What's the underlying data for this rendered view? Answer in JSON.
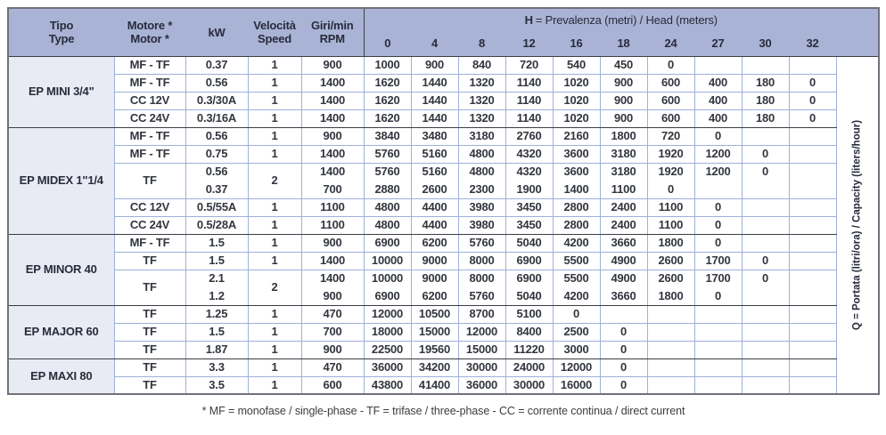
{
  "table": {
    "headers": {
      "tipo_line1": "Tipo",
      "tipo_line2": "Type",
      "motore_line1": "Motore *",
      "motore_line2": "Motor *",
      "kw": "kW",
      "velocita_line1": "Velocità",
      "velocita_line2": "Speed",
      "giri_line1": "Giri/min",
      "giri_line2": "RPM",
      "h_symbol": "H",
      "h_title": "= Prevalenza (metri) / Head (meters)",
      "h_values": [
        "0",
        "4",
        "8",
        "12",
        "16",
        "18",
        "24",
        "27",
        "30",
        "32"
      ]
    },
    "q_label": "Q = Portata (litri/ora) / Capacity (liters/hour)",
    "groups": [
      {
        "name": "EP MINI 3/4\"",
        "rows": [
          {
            "motor": "MF - TF",
            "kw": [
              "0.37"
            ],
            "speed": "1",
            "rpm": [
              "900"
            ],
            "q": [
              [
                "1000",
                "900",
                "840",
                "720",
                "540",
                "450",
                "0",
                "",
                "",
                ""
              ]
            ]
          },
          {
            "motor": "MF - TF",
            "kw": [
              "0.56"
            ],
            "speed": "1",
            "rpm": [
              "1400"
            ],
            "q": [
              [
                "1620",
                "1440",
                "1320",
                "1140",
                "1020",
                "900",
                "600",
                "400",
                "180",
                "0"
              ]
            ]
          },
          {
            "motor": "CC 12V",
            "kw": [
              "0.3/30A"
            ],
            "speed": "1",
            "rpm": [
              "1400"
            ],
            "q": [
              [
                "1620",
                "1440",
                "1320",
                "1140",
                "1020",
                "900",
                "600",
                "400",
                "180",
                "0"
              ]
            ]
          },
          {
            "motor": "CC 24V",
            "kw": [
              "0.3/16A"
            ],
            "speed": "1",
            "rpm": [
              "1400"
            ],
            "q": [
              [
                "1620",
                "1440",
                "1320",
                "1140",
                "1020",
                "900",
                "600",
                "400",
                "180",
                "0"
              ]
            ]
          }
        ]
      },
      {
        "name": "EP MIDEX 1\"1/4",
        "rows": [
          {
            "motor": "MF - TF",
            "kw": [
              "0.56"
            ],
            "speed": "1",
            "rpm": [
              "900"
            ],
            "q": [
              [
                "3840",
                "3480",
                "3180",
                "2760",
                "2160",
                "1800",
                "720",
                "0",
                "",
                ""
              ]
            ]
          },
          {
            "motor": "MF - TF",
            "kw": [
              "0.75"
            ],
            "speed": "1",
            "rpm": [
              "1400"
            ],
            "q": [
              [
                "5760",
                "5160",
                "4800",
                "4320",
                "3600",
                "3180",
                "1920",
                "1200",
                "0",
                ""
              ]
            ]
          },
          {
            "motor": "TF",
            "kw": [
              "0.56",
              "0.37"
            ],
            "speed": "2",
            "rpm": [
              "1400",
              "700"
            ],
            "q": [
              [
                "5760",
                "5160",
                "4800",
                "4320",
                "3600",
                "3180",
                "1920",
                "1200",
                "0",
                ""
              ],
              [
                "2880",
                "2600",
                "2300",
                "1900",
                "1400",
                "1100",
                "0",
                "",
                "",
                ""
              ]
            ]
          },
          {
            "motor": "CC 12V",
            "kw": [
              "0.5/55A"
            ],
            "speed": "1",
            "rpm": [
              "1100"
            ],
            "q": [
              [
                "4800",
                "4400",
                "3980",
                "3450",
                "2800",
                "2400",
                "1100",
                "0",
                "",
                ""
              ]
            ]
          },
          {
            "motor": "CC 24V",
            "kw": [
              "0.5/28A"
            ],
            "speed": "1",
            "rpm": [
              "1100"
            ],
            "q": [
              [
                "4800",
                "4400",
                "3980",
                "3450",
                "2800",
                "2400",
                "1100",
                "0",
                "",
                ""
              ]
            ]
          }
        ]
      },
      {
        "name": "EP MINOR 40",
        "rows": [
          {
            "motor": "MF - TF",
            "kw": [
              "1.5"
            ],
            "speed": "1",
            "rpm": [
              "900"
            ],
            "q": [
              [
                "6900",
                "6200",
                "5760",
                "5040",
                "4200",
                "3660",
                "1800",
                "0",
                "",
                ""
              ]
            ]
          },
          {
            "motor": "TF",
            "kw": [
              "1.5"
            ],
            "speed": "1",
            "rpm": [
              "1400"
            ],
            "q": [
              [
                "10000",
                "9000",
                "8000",
                "6900",
                "5500",
                "4900",
                "2600",
                "1700",
                "0",
                ""
              ]
            ]
          },
          {
            "motor": "TF",
            "kw": [
              "2.1",
              "1.2"
            ],
            "speed": "2",
            "rpm": [
              "1400",
              "900"
            ],
            "q": [
              [
                "10000",
                "9000",
                "8000",
                "6900",
                "5500",
                "4900",
                "2600",
                "1700",
                "0",
                ""
              ],
              [
                "6900",
                "6200",
                "5760",
                "5040",
                "4200",
                "3660",
                "1800",
                "0",
                "",
                ""
              ]
            ]
          }
        ]
      },
      {
        "name": "EP MAJOR 60",
        "rows": [
          {
            "motor": "TF",
            "kw": [
              "1.25"
            ],
            "speed": "1",
            "rpm": [
              "470"
            ],
            "q": [
              [
                "12000",
                "10500",
                "8700",
                "5100",
                "0",
                "",
                "",
                "",
                "",
                ""
              ]
            ]
          },
          {
            "motor": "TF",
            "kw": [
              "1.5"
            ],
            "speed": "1",
            "rpm": [
              "700"
            ],
            "q": [
              [
                "18000",
                "15000",
                "12000",
                "8400",
                "2500",
                "0",
                "",
                "",
                "",
                ""
              ]
            ]
          },
          {
            "motor": "TF",
            "kw": [
              "1.87"
            ],
            "speed": "1",
            "rpm": [
              "900"
            ],
            "q": [
              [
                "22500",
                "19560",
                "15000",
                "11220",
                "3000",
                "0",
                "",
                "",
                "",
                ""
              ]
            ]
          }
        ]
      },
      {
        "name": "EP MAXI 80",
        "rows": [
          {
            "motor": "TF",
            "kw": [
              "3.3"
            ],
            "speed": "1",
            "rpm": [
              "470"
            ],
            "q": [
              [
                "36000",
                "34200",
                "30000",
                "24000",
                "12000",
                "0",
                "",
                "",
                "",
                ""
              ]
            ]
          },
          {
            "motor": "TF",
            "kw": [
              "3.5"
            ],
            "speed": "1",
            "rpm": [
              "600"
            ],
            "q": [
              [
                "43800",
                "41400",
                "36000",
                "30000",
                "16000",
                "0",
                "",
                "",
                "",
                ""
              ]
            ]
          }
        ]
      }
    ]
  },
  "footnote": "* MF = monofase / single-phase - TF = trifase / three-phase - CC = corrente continua / direct current",
  "colors": {
    "header_bg": "#a9b3d6",
    "type_column_bg": "#e9ebf4",
    "grid_light": "#9fb0d8",
    "grid_dark": "#3b3d44",
    "outer_border": "#70727a",
    "text": "#32363e"
  }
}
